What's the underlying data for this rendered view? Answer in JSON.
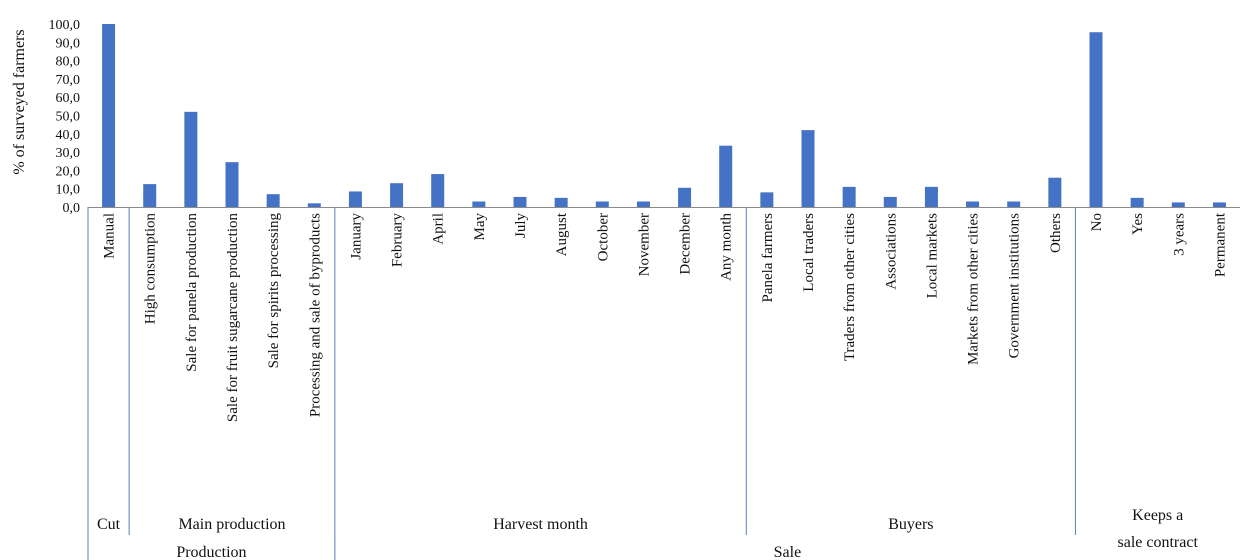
{
  "chart_data": {
    "type": "bar",
    "ylabel": "% of surveyed farmers",
    "ylim": [
      0,
      100
    ],
    "yticks": [
      "0,0",
      "10,0",
      "20,0",
      "30,0",
      "40,0",
      "50,0",
      "60,0",
      "70,0",
      "80,0",
      "90,0",
      "100,0"
    ],
    "bar_color": "#4472c4",
    "categories": [
      "Manual",
      "High consumption",
      "Sale for panela production",
      "Sale for fruit sugarcane production",
      "Sale for spirits processing",
      "Processing and sale of byproducts",
      "January",
      "February",
      "April",
      "May",
      "July",
      "August",
      "October",
      "November",
      "December",
      "Any month",
      "Panela farmers",
      "Local traders",
      "Traders from other cities",
      "Associations",
      "Local markets",
      "Markets from other cities",
      "Government institutions",
      "Others",
      "No",
      "Yes",
      "3 years",
      "Permanent"
    ],
    "values": [
      100.0,
      12.5,
      52.0,
      24.5,
      7.0,
      2.0,
      8.5,
      13.0,
      18.0,
      3.0,
      5.5,
      5.0,
      3.0,
      3.0,
      10.5,
      33.5,
      8.0,
      42.0,
      11.0,
      5.5,
      11.0,
      3.0,
      3.0,
      16.0,
      95.5,
      5.0,
      2.5,
      2.5
    ],
    "groups_level1": [
      {
        "label": "Cut",
        "count": 1
      },
      {
        "label": "Main production",
        "count": 5
      },
      {
        "label": "Harvest month",
        "count": 10
      },
      {
        "label": "Buyers",
        "count": 8
      },
      {
        "label": "Keeps a sale contract",
        "count": 4
      }
    ],
    "groups_level2": [
      {
        "label": "Production",
        "count": 6
      },
      {
        "label": "Sale",
        "count": 22
      }
    ]
  }
}
